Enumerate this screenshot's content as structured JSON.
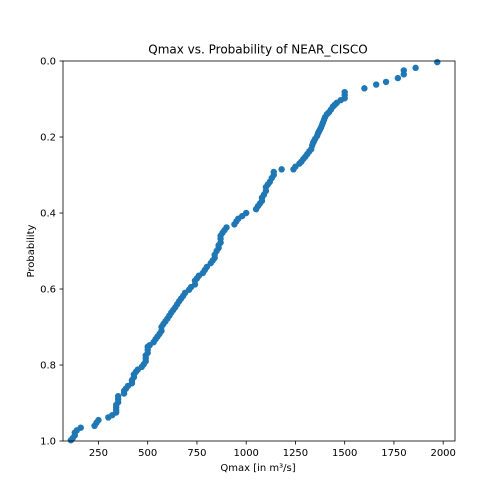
{
  "chart_data": {
    "type": "scatter",
    "title": "Qmax vs. Probability of NEAR_CISCO",
    "xlabel": "Qmax [in m³/s]",
    "ylabel": "Probability",
    "xlim": [
      70,
      2060
    ],
    "ylim": [
      1.0,
      0.0
    ],
    "y_inverted": true,
    "grid": false,
    "x_ticks": [
      250,
      500,
      750,
      1000,
      1250,
      1500,
      1750,
      2000
    ],
    "x_tick_labels": [
      "250",
      "500",
      "750",
      "1000",
      "1250",
      "1500",
      "1750",
      "2000"
    ],
    "y_ticks": [
      0.0,
      0.2,
      0.4,
      0.6,
      0.8,
      1.0
    ],
    "y_tick_labels": [
      "0.0",
      "0.2",
      "0.4",
      "0.6",
      "0.8",
      "1.0"
    ],
    "marker_color": "#1f77b4",
    "x": [
      1970,
      1860,
      1800,
      1800,
      1770,
      1710,
      1660,
      1600,
      1500,
      1500,
      1500,
      1480,
      1460,
      1450,
      1440,
      1430,
      1420,
      1410,
      1400,
      1395,
      1390,
      1385,
      1380,
      1375,
      1370,
      1365,
      1360,
      1350,
      1345,
      1340,
      1335,
      1330,
      1320,
      1310,
      1300,
      1290,
      1280,
      1270,
      1250,
      1240,
      1180,
      1140,
      1140,
      1130,
      1120,
      1110,
      1100,
      1100,
      1090,
      1080,
      1080,
      1070,
      1060,
      1050,
      1000,
      980,
      960,
      950,
      940,
      900,
      890,
      880,
      870,
      870,
      870,
      860,
      860,
      850,
      840,
      840,
      830,
      820,
      800,
      790,
      780,
      760,
      750,
      740,
      740,
      720,
      710,
      690,
      680,
      670,
      660,
      650,
      640,
      630,
      620,
      610,
      600,
      590,
      580,
      570,
      570,
      560,
      550,
      540,
      530,
      510,
      500,
      500,
      500,
      490,
      490,
      490,
      480,
      470,
      450,
      440,
      430,
      430,
      420,
      420,
      400,
      390,
      380,
      380,
      350,
      350,
      350,
      340,
      340,
      340,
      340,
      320,
      300,
      250,
      240,
      230,
      160,
      140,
      130,
      130,
      120,
      110
    ],
    "y": [
      0.003,
      0.018,
      0.025,
      0.035,
      0.045,
      0.055,
      0.062,
      0.072,
      0.082,
      0.09,
      0.098,
      0.103,
      0.11,
      0.115,
      0.12,
      0.128,
      0.135,
      0.14,
      0.148,
      0.155,
      0.162,
      0.168,
      0.175,
      0.18,
      0.185,
      0.19,
      0.197,
      0.205,
      0.21,
      0.215,
      0.222,
      0.232,
      0.238,
      0.245,
      0.252,
      0.258,
      0.265,
      0.27,
      0.278,
      0.285,
      0.285,
      0.292,
      0.3,
      0.308,
      0.318,
      0.325,
      0.332,
      0.342,
      0.352,
      0.36,
      0.368,
      0.375,
      0.382,
      0.39,
      0.4,
      0.408,
      0.415,
      0.422,
      0.43,
      0.438,
      0.445,
      0.452,
      0.46,
      0.468,
      0.478,
      0.485,
      0.492,
      0.5,
      0.51,
      0.518,
      0.525,
      0.532,
      0.542,
      0.55,
      0.558,
      0.565,
      0.572,
      0.578,
      0.588,
      0.595,
      0.602,
      0.61,
      0.618,
      0.625,
      0.632,
      0.64,
      0.648,
      0.655,
      0.662,
      0.67,
      0.678,
      0.685,
      0.692,
      0.7,
      0.71,
      0.718,
      0.725,
      0.732,
      0.74,
      0.748,
      0.752,
      0.76,
      0.768,
      0.775,
      0.782,
      0.79,
      0.798,
      0.805,
      0.812,
      0.818,
      0.825,
      0.832,
      0.84,
      0.848,
      0.855,
      0.862,
      0.868,
      0.875,
      0.882,
      0.89,
      0.898,
      0.905,
      0.912,
      0.918,
      0.925,
      0.932,
      0.938,
      0.945,
      0.952,
      0.96,
      0.965,
      0.972,
      0.978,
      0.985,
      0.992,
      0.998
    ]
  }
}
